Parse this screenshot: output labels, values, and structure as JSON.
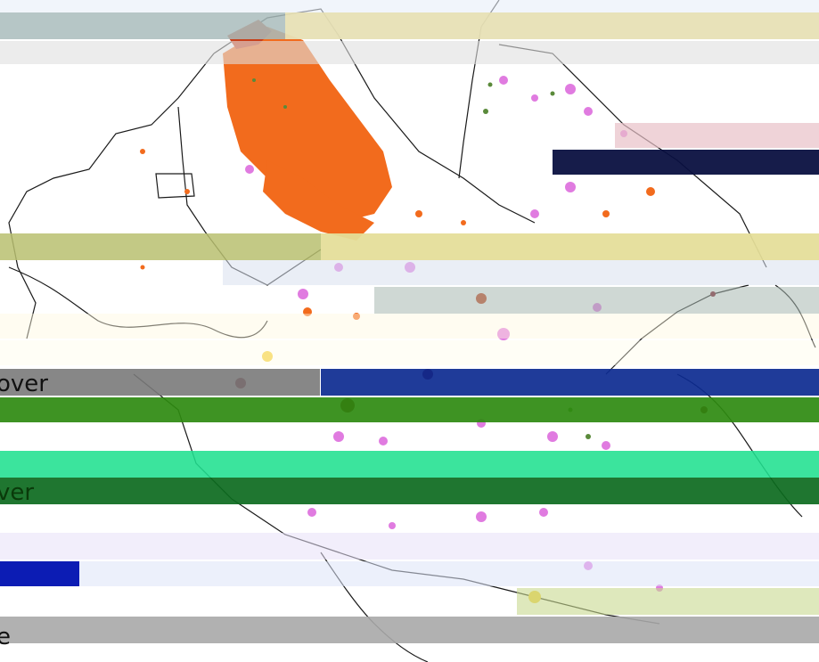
{
  "map": {
    "colors": {
      "background": "#ffffff",
      "boundary": "#1a1a1a",
      "land_orange": "#f26b1d",
      "land_dark_orange": "#c8401a",
      "land_magenta": "#e07be0",
      "land_violet": "#c46fd6",
      "land_green": "#5a8a3a",
      "land_darkred": "#7a1020",
      "land_yellow": "#f5d040"
    },
    "legend_fragments": [
      {
        "text": "over",
        "color": "#111111",
        "band_color": "#7a7a7a"
      },
      {
        "text": "ver",
        "color": "#0a3a0a",
        "band_color": "#0c6a1e"
      },
      {
        "text": "e",
        "color": "#111111",
        "band_color": "#a8a8a8"
      }
    ],
    "artifact_bands": [
      {
        "color": "#e8eef8"
      },
      {
        "color": "#a9bcbc"
      },
      {
        "color": "#fdeeb4"
      },
      {
        "color": "#e0e0e0"
      },
      {
        "color": "#e8c0c8"
      },
      {
        "color": "#0a1040"
      },
      {
        "color": "#b8c070"
      },
      {
        "color": "#fdf0b0"
      },
      {
        "color": "#d8e0ee"
      },
      {
        "color": "#a8b8b0"
      },
      {
        "color": "#fff8e0"
      },
      {
        "color": "#fffde8"
      },
      {
        "color": "#7a7a7a"
      },
      {
        "color": "#0c2a90"
      },
      {
        "color": "#2e8a10"
      },
      {
        "color": "#20e090"
      },
      {
        "color": "#0c6a1e"
      },
      {
        "color": "#e8e0f8"
      },
      {
        "color": "#dde4f8"
      },
      {
        "color": "#0010b0"
      },
      {
        "color": "#c8d890"
      },
      {
        "color": "#a8a8a8"
      }
    ]
  }
}
